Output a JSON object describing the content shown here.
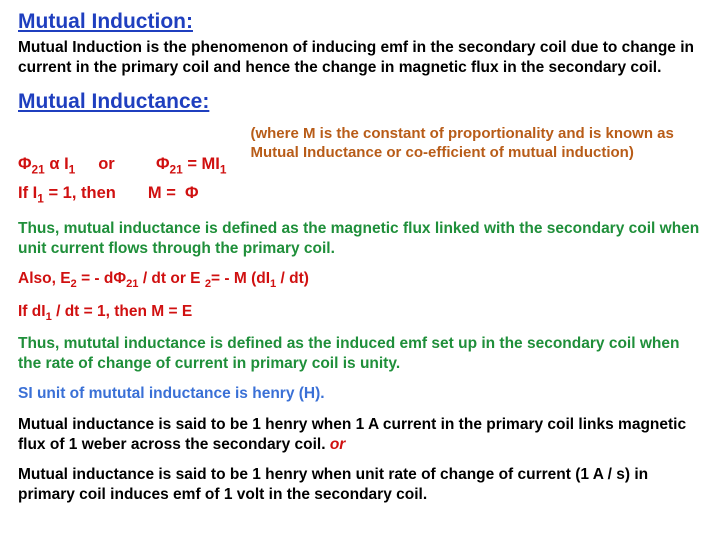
{
  "colors": {
    "heading_blue": "#1f3fbf",
    "eq_red": "#d01010",
    "def_green": "#1f8f3a",
    "note_brown": "#b85c18",
    "si_unit": "#3a70d6",
    "text_black": "#000000"
  },
  "title1": "Mutual Induction:",
  "intro_def": "Mutual Induction is the phenomenon of inducing emf in the secondary coil due to change in current in the primary coil and hence the change in magnetic flux in the secondary coil.",
  "title2": "Mutual Inductance:",
  "eq": {
    "l1a": "Φ",
    "l1a_sub": "21",
    "l1b": " α I",
    "l1b_sub": "1",
    "l1c": "     or         Φ",
    "l1c_sub": "21",
    "l1d": " = MI",
    "l1d_sub": "1",
    "l2a": "If I",
    "l2a_sub": "1",
    "l2b": " = 1, then       M =  Φ"
  },
  "sidenote": "(where M is the constant of proportionality and is known as Mutual Inductance or co-efficient of mutual induction)",
  "def1": "Thus, mutual inductance is defined as the magnetic flux linked with the secondary coil when unit current flows through the primary coil.",
  "eq2": {
    "p1": "Also,   E",
    "p1_sub": "2",
    "p2": " = - dΦ",
    "p2_sub": "21",
    "p3": " / dt          or        E ",
    "p3_sub": "2",
    "p4": "= - M (dI",
    "p4_sub": "1",
    "p5": " / dt)"
  },
  "eq3": {
    "p1": "If dI",
    "p1_sub": "1",
    "p2": " / dt = 1, then       M = E"
  },
  "def2": "Thus, mututal inductance is defined as the induced emf set up in the secondary coil when the rate of change of current in primary coil is unity.",
  "si_unit": "SI unit of mututal inductance is henry (H).",
  "henry1a": "Mutual inductance is said to be 1 henry when 1 A current in the primary coil links magnetic flux of 1 weber across the secondary coil.    ",
  "henry1_or": "or",
  "henry2": "Mutual inductance is said to be 1 henry when unit rate of change of current (1 A / s) in primary coil  induces emf of 1 volt in the secondary coil."
}
